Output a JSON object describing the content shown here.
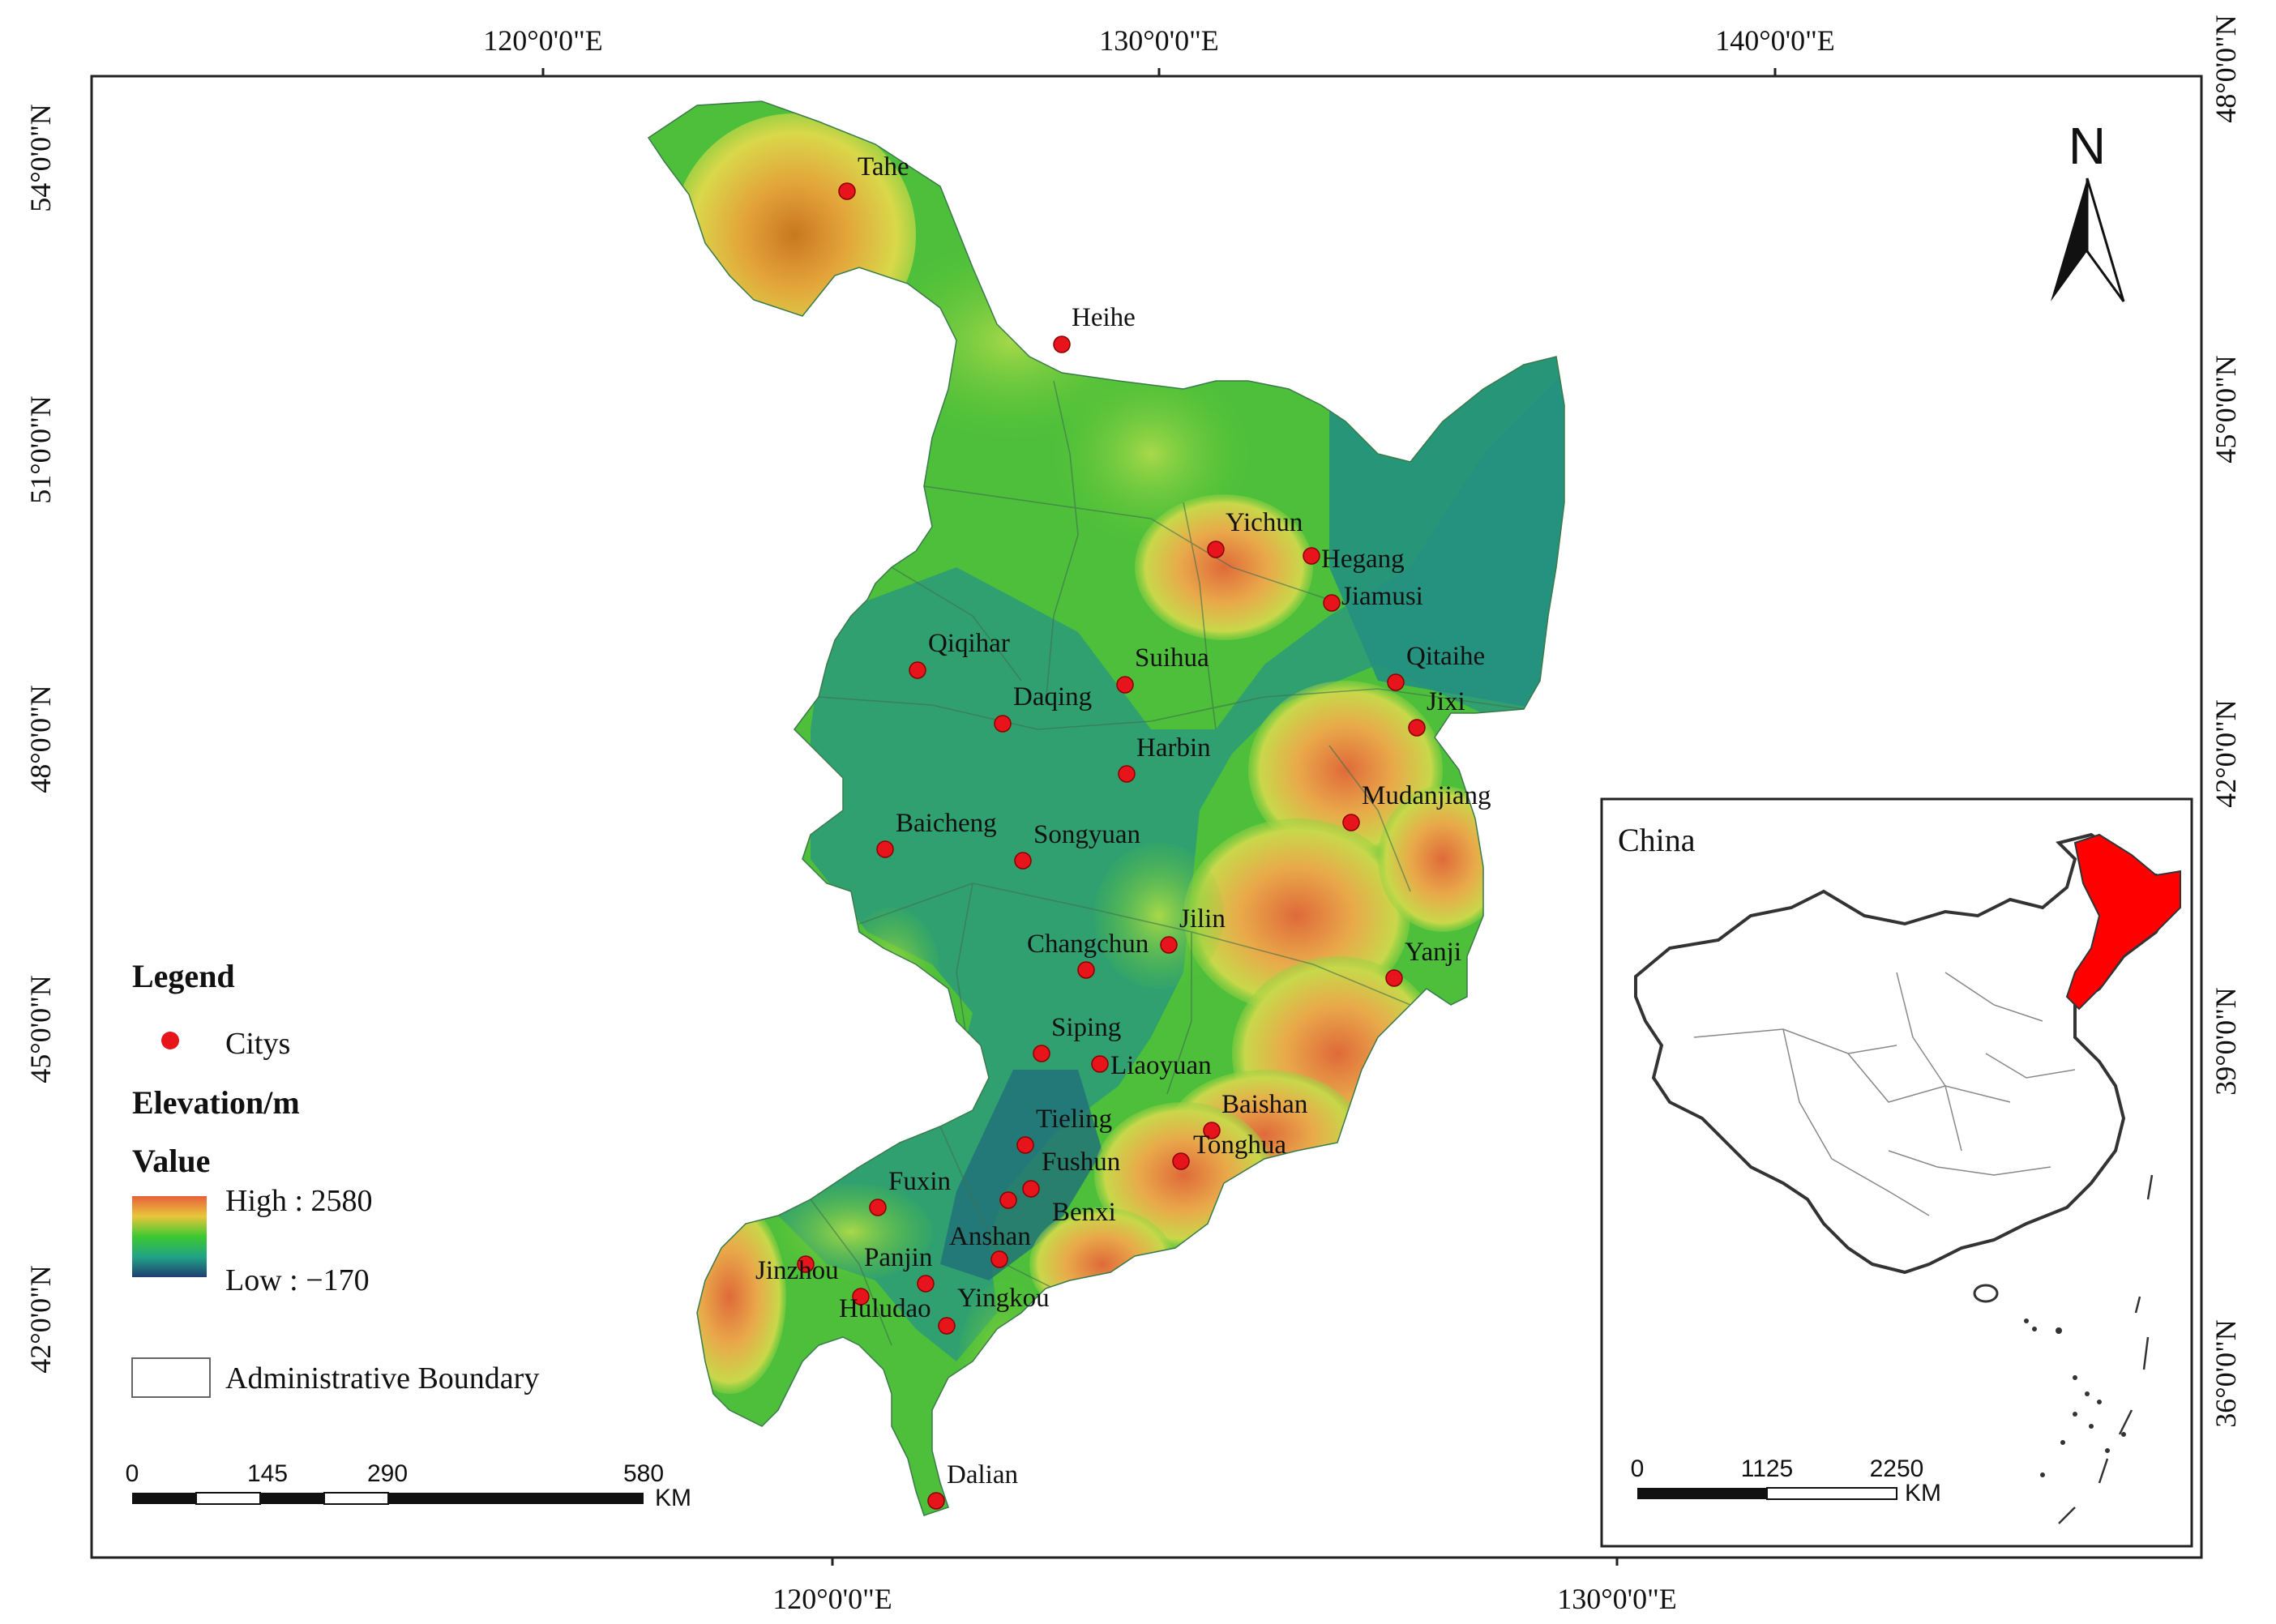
{
  "map": {
    "top_ticks": [
      "120°0'0\"E",
      "130°0'0\"E",
      "140°0'0\"E"
    ],
    "bottom_ticks": [
      "120°0'0\"E",
      "130°0'0\"E"
    ],
    "left_ticks": [
      "54°0'0\"N",
      "51°0'0\"N",
      "48°0'0\"N",
      "45°0'0\"N",
      "42°0'0\"N"
    ],
    "right_ticks": [
      "48°0'0\"N",
      "45°0'0\"N",
      "42°0'0\"N",
      "39°0'0\"N",
      "36°0'0\"N"
    ],
    "north_label": "N",
    "cities": [
      {
        "name": "Tahe"
      },
      {
        "name": "Heihe"
      },
      {
        "name": "Yichun"
      },
      {
        "name": "Hegang"
      },
      {
        "name": "Jiamusi"
      },
      {
        "name": "Qiqihar"
      },
      {
        "name": "Suihua"
      },
      {
        "name": "Qitaihe"
      },
      {
        "name": "Daqing"
      },
      {
        "name": "Jixi"
      },
      {
        "name": "Harbin"
      },
      {
        "name": "Mudanjiang"
      },
      {
        "name": "Baicheng"
      },
      {
        "name": "Songyuan"
      },
      {
        "name": "Jilin"
      },
      {
        "name": "Changchun"
      },
      {
        "name": "Yanji"
      },
      {
        "name": "Siping"
      },
      {
        "name": "Liaoyuan"
      },
      {
        "name": "Baishan"
      },
      {
        "name": "Tieling"
      },
      {
        "name": "Tonghua"
      },
      {
        "name": "Fushun"
      },
      {
        "name": "Fuxin"
      },
      {
        "name": "Benxi"
      },
      {
        "name": "Anshan"
      },
      {
        "name": "Jinzhou"
      },
      {
        "name": "Panjin"
      },
      {
        "name": "Yingkou"
      },
      {
        "name": "Huludao"
      },
      {
        "name": "Dalian"
      }
    ]
  },
  "legend": {
    "title": "Legend",
    "cities_label": "Citys",
    "elevation_title": "Elevation/m",
    "value_title": "Value",
    "high_label": "High : 2580",
    "low_label": "Low : −170",
    "boundary_label": "Administrative Boundary"
  },
  "scalebar": {
    "ticks": [
      "0",
      "145",
      "290",
      "580"
    ],
    "unit": "KM"
  },
  "inset": {
    "title": "China",
    "scale_ticks": [
      "0",
      "1125",
      "2250"
    ],
    "unit": "KM"
  },
  "colors": {
    "city_marker": "#e8141b",
    "highlight_region": "#ff0000",
    "ramp_high": "#e8603a",
    "ramp_mid": "#3cc832",
    "ramp_low": "#1f5f73"
  }
}
